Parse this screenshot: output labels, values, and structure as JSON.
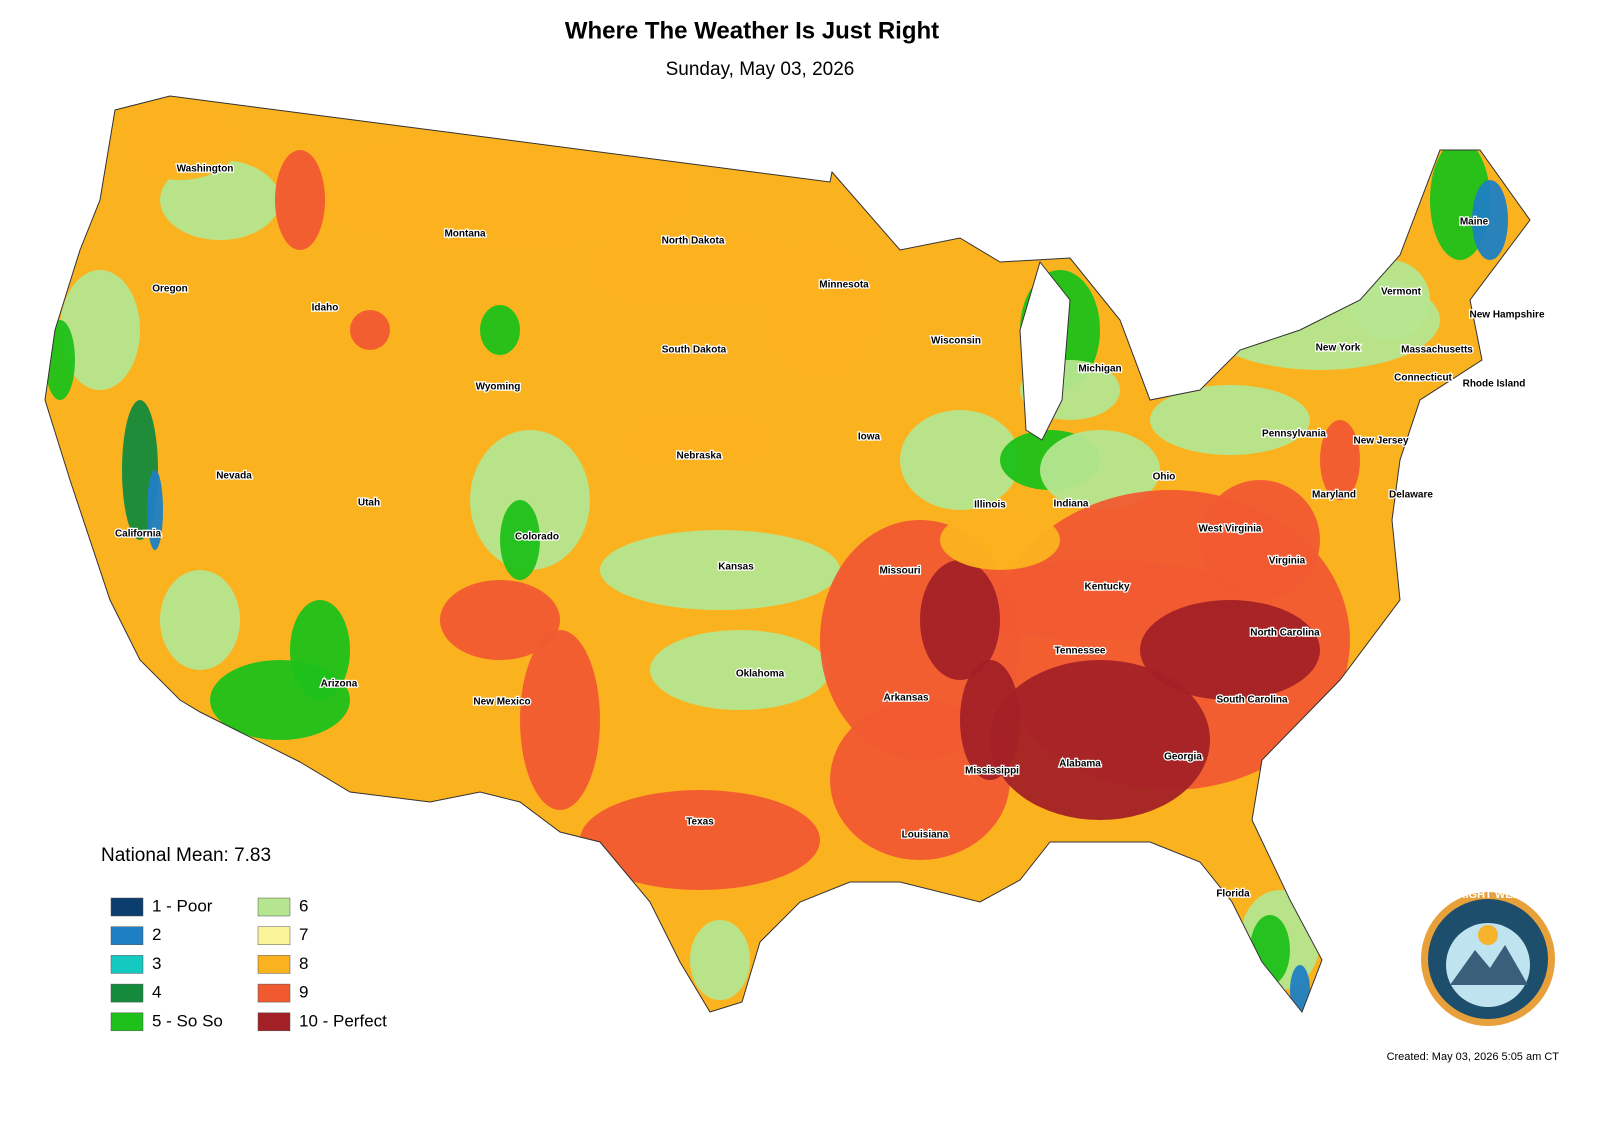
{
  "header": {
    "title": "Where The Weather Is Just Right",
    "subtitle": "Sunday, May 03, 2026"
  },
  "states": [
    "Washington",
    "Oregon",
    "Idaho",
    "Montana",
    "Wyoming",
    "Nevada",
    "Utah",
    "Colorado",
    "California",
    "Arizona",
    "New Mexico",
    "North Dakota",
    "South Dakota",
    "Nebraska",
    "Kansas",
    "Oklahoma",
    "Texas",
    "Minnesota",
    "Iowa",
    "Missouri",
    "Arkansas",
    "Louisiana",
    "Wisconsin",
    "Illinois",
    "Michigan",
    "Indiana",
    "Ohio",
    "Kentucky",
    "Tennessee",
    "Mississippi",
    "Alabama",
    "Georgia",
    "Florida",
    "South Carolina",
    "North Carolina",
    "Virginia",
    "West Virginia",
    "Maryland",
    "Delaware",
    "New Jersey",
    "Pennsylvania",
    "New York",
    "Connecticut",
    "Rhode Island",
    "Massachusetts",
    "Vermont",
    "New Hampshire",
    "Maine"
  ],
  "legend": {
    "mean": "National Mean: 7.83",
    "items": [
      {
        "label": "1 - Poor",
        "color": "#0b3d6e"
      },
      {
        "label": "2",
        "color": "#1f7fc4"
      },
      {
        "label": "3",
        "color": "#14c9c0"
      },
      {
        "label": "4",
        "color": "#138a3c"
      },
      {
        "label": "5 - So So",
        "color": "#1ec11a"
      },
      {
        "label": "6",
        "color": "#b5e68f"
      },
      {
        "label": "7",
        "color": "#fbf49a"
      },
      {
        "label": "8",
        "color": "#fbb21f"
      },
      {
        "label": "9",
        "color": "#f15a31"
      },
      {
        "label": "10 - Perfect",
        "color": "#a32126"
      }
    ]
  },
  "logo": "JUST RIGHT WEATHER",
  "footer": "Created: May 03, 2026 5:05 am CT"
}
